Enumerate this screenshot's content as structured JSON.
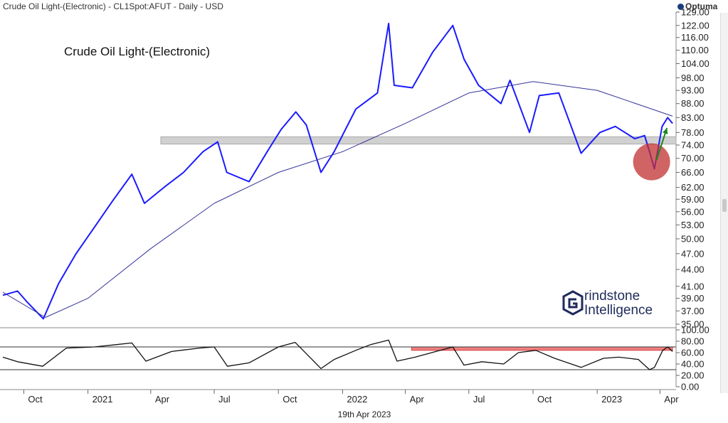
{
  "header": {
    "text": "Crude Oil Light-(Electronic) - CL1Spot:AFUT - Daily - USD",
    "brand": "Optuma"
  },
  "chart_data": [
    {
      "type": "line",
      "title": "Crude Oil Light-(Electronic)",
      "scale": "log",
      "ylim": [
        35,
        129
      ],
      "y_ticks": [
        "129.00",
        "122.00",
        "116.00",
        "110.00",
        "104.00",
        "98.00",
        "93.00",
        "88.00",
        "83.00",
        "78.00",
        "74.00",
        "70.00",
        "66.00",
        "62.00",
        "59.00",
        "56.00",
        "53.00",
        "50.00",
        "47.00",
        "44.00",
        "41.00",
        "39.00",
        "37.00",
        "35.00"
      ],
      "x_ticks": [
        "Oct",
        "2021",
        "Apr",
        "Jul",
        "Oct",
        "2022",
        "Apr",
        "Jul",
        "Oct",
        "2023",
        "Apr"
      ],
      "date_label": "19th Apr 2023",
      "series": [
        {
          "name": "",
          "color": "#1a1aff",
          "x": [
            "2020-09-01",
            "2020-09-22",
            "2020-10-05",
            "2020-10-29",
            "2020-11-20",
            "2020-12-15",
            "2021-01-08",
            "2021-02-05",
            "2021-03-05",
            "2021-03-23",
            "2021-04-20",
            "2021-05-18",
            "2021-06-15",
            "2021-07-06",
            "2021-07-19",
            "2021-08-20",
            "2021-09-15",
            "2021-10-05",
            "2021-10-26",
            "2021-11-10",
            "2021-12-01",
            "2021-12-20",
            "2022-01-20",
            "2022-02-20",
            "2022-03-08",
            "2022-03-16",
            "2022-04-11",
            "2022-05-10",
            "2022-06-08",
            "2022-06-24",
            "2022-07-15",
            "2022-08-16",
            "2022-08-29",
            "2022-09-26",
            "2022-10-10",
            "2022-11-07",
            "2022-12-09",
            "2023-01-05",
            "2023-01-27",
            "2023-02-24",
            "2023-03-10",
            "2023-03-17",
            "2023-03-24",
            "2023-04-04",
            "2023-04-12",
            "2023-04-19"
          ],
          "values": [
            39.5,
            40.2,
            38.5,
            35.8,
            41.5,
            47.0,
            52.0,
            58.5,
            65.5,
            58.0,
            62.0,
            66.0,
            72.0,
            75.0,
            66.0,
            63.5,
            72.0,
            79.0,
            85.0,
            80.5,
            66.0,
            72.0,
            86.0,
            92.0,
            123.0,
            95.0,
            94.0,
            109.0,
            122.0,
            106.0,
            95.0,
            88.0,
            97.0,
            78.0,
            91.0,
            92.0,
            71.5,
            78.0,
            80.0,
            76.0,
            77.0,
            72.0,
            67.0,
            80.0,
            83.0,
            81.0
          ]
        },
        {
          "name": "",
          "color": "#333399",
          "x": [
            "2020-09-01",
            "2020-11-01",
            "2021-01-01",
            "2021-04-01",
            "2021-07-01",
            "2021-10-01",
            "2022-01-01",
            "2022-04-01",
            "2022-07-01",
            "2022-10-01",
            "2023-01-01",
            "2023-04-19"
          ],
          "values": [
            40.0,
            36.0,
            39.0,
            48.0,
            58.0,
            66.0,
            72.0,
            81.0,
            92.0,
            96.5,
            93.0,
            83.5
          ]
        }
      ],
      "annotations": {
        "resistance_band": [
          74.3,
          76.6
        ],
        "band_color": "#d0d0d0",
        "circle": {
          "date": "2023-03-20",
          "value": 69.0,
          "color": "#c03030"
        },
        "arrow": {
          "from": {
            "date": "2023-03-27",
            "value": 69.5
          },
          "to": {
            "date": "2023-04-11",
            "value": 79.5
          },
          "color": "#1a8a1a"
        }
      }
    },
    {
      "type": "line",
      "title": "",
      "ylim": [
        0,
        100
      ],
      "y_ticks": [
        "100.00",
        "80.00",
        "60.00",
        "40.00",
        "20.00",
        "0.00"
      ],
      "reference_lines": [
        70,
        30
      ],
      "highlight_zone": {
        "from": "2022-04-10",
        "to": "2023-04-19",
        "ylim": [
          64,
          70
        ],
        "color": "#f08080"
      },
      "series": [
        {
          "name": "",
          "color": "#111111",
          "x": [
            "2020-09-01",
            "2020-09-22",
            "2020-10-28",
            "2020-12-01",
            "2021-01-10",
            "2021-02-10",
            "2021-03-05",
            "2021-03-25",
            "2021-05-01",
            "2021-06-10",
            "2021-07-01",
            "2021-07-20",
            "2021-08-20",
            "2021-10-01",
            "2021-10-25",
            "2021-11-15",
            "2021-12-01",
            "2021-12-20",
            "2022-01-20",
            "2022-02-10",
            "2022-03-08",
            "2022-03-20",
            "2022-04-15",
            "2022-05-15",
            "2022-06-08",
            "2022-06-24",
            "2022-07-20",
            "2022-08-20",
            "2022-09-10",
            "2022-10-05",
            "2022-11-01",
            "2022-12-09",
            "2023-01-10",
            "2023-02-01",
            "2023-03-01",
            "2023-03-17",
            "2023-03-24",
            "2023-04-05",
            "2023-04-12",
            "2023-04-19"
          ],
          "values": [
            52,
            44,
            36,
            68,
            70,
            74,
            77,
            45,
            62,
            68,
            70,
            36,
            42,
            70,
            78,
            52,
            32,
            48,
            64,
            74,
            82,
            45,
            52,
            62,
            70,
            38,
            44,
            40,
            60,
            64,
            50,
            34,
            50,
            52,
            48,
            30,
            34,
            64,
            70,
            62
          ]
        }
      ]
    }
  ]
}
